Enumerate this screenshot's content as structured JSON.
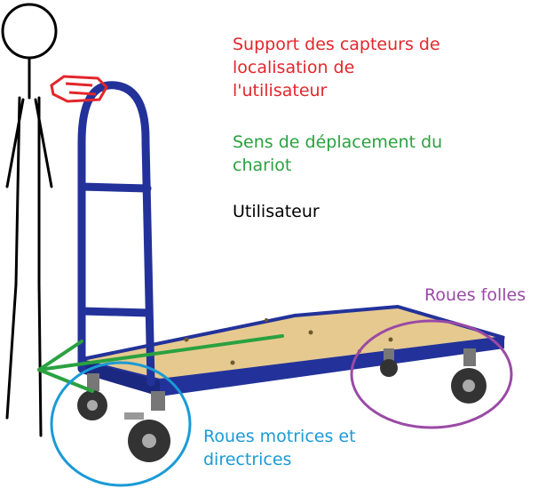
{
  "labels": {
    "sensor_support": {
      "lines": [
        "Support des capteurs de",
        "localisation de",
        "l'utilisateur"
      ],
      "color": "#e3262b"
    },
    "direction": {
      "lines": [
        "Sens de déplacement du",
        "chariot"
      ],
      "color": "#2aa140"
    },
    "user": {
      "lines": [
        "Utilisateur"
      ],
      "color": "#000000"
    },
    "caster_wheels": {
      "lines": [
        "Roues folles"
      ],
      "color": "#9a4aa6"
    },
    "drive_wheels": {
      "lines": [
        "Roues motrices et",
        "directrices"
      ],
      "color": "#1a9ad6"
    }
  },
  "colors": {
    "frame": "#23329a",
    "deck": "#e6c98f",
    "wheel": "#333333",
    "annotation_red": "#e3262b",
    "annotation_green": "#2aa140",
    "annotation_purple": "#9a4aa6",
    "annotation_blue": "#1a9ad6"
  },
  "icons": [
    "stick-figure-user-icon",
    "platform-trolley-icon",
    "direction-arrow-icon"
  ]
}
